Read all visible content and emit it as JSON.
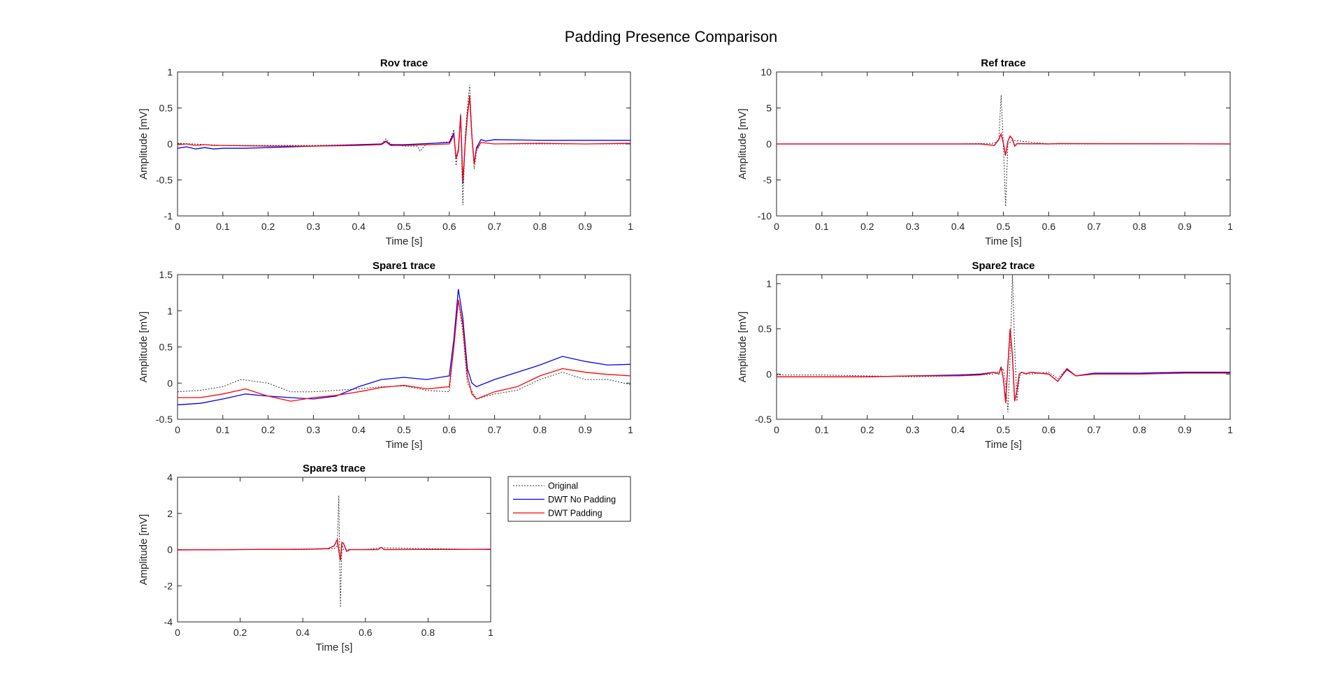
{
  "figure": {
    "title": "Padding Presence Comparison"
  },
  "legend": {
    "items": [
      {
        "label": "Original",
        "color": "#333333",
        "style": "dotted"
      },
      {
        "label": "DWT No Padding",
        "color": "#0000ff",
        "style": "solid"
      },
      {
        "label": "DWT Padding",
        "color": "#ff0000",
        "style": "solid"
      }
    ]
  },
  "chart_data": [
    {
      "id": "rov",
      "type": "line",
      "title": "Rov trace",
      "xlabel": "Time [s]",
      "ylabel": "Amplitude [mV]",
      "xlim": [
        0,
        1
      ],
      "ylim": [
        -1,
        1
      ],
      "xticks": [
        0,
        0.1,
        0.2,
        0.3,
        0.4,
        0.5,
        0.6,
        0.7,
        0.8,
        0.9,
        1
      ],
      "yticks": [
        -1,
        -0.5,
        0,
        0.5,
        1
      ],
      "series": [
        {
          "name": "Original",
          "color": "#333333",
          "style": "dotted",
          "x": [
            0,
            0.1,
            0.2,
            0.3,
            0.4,
            0.45,
            0.46,
            0.47,
            0.5,
            0.53,
            0.535,
            0.55,
            0.6,
            0.61,
            0.615,
            0.62,
            0.625,
            0.63,
            0.635,
            0.64,
            0.645,
            0.65,
            0.655,
            0.66,
            0.67,
            0.7,
            0.8,
            0.9,
            1
          ],
          "y": [
            0.01,
            -0.02,
            -0.02,
            -0.02,
            -0.01,
            0.0,
            0.07,
            0.0,
            -0.03,
            -0.03,
            -0.1,
            0.0,
            0.03,
            0.2,
            -0.3,
            -0.05,
            0.42,
            -0.85,
            0.1,
            0.5,
            0.82,
            0.1,
            -0.35,
            -0.1,
            0.02,
            0.0,
            0.0,
            0.0,
            0.0
          ]
        },
        {
          "name": "DWT No Padding",
          "color": "#0000ff",
          "style": "solid",
          "x": [
            0,
            0.02,
            0.04,
            0.06,
            0.08,
            0.1,
            0.15,
            0.2,
            0.3,
            0.4,
            0.45,
            0.46,
            0.47,
            0.5,
            0.6,
            0.61,
            0.615,
            0.62,
            0.625,
            0.63,
            0.635,
            0.64,
            0.645,
            0.65,
            0.655,
            0.66,
            0.67,
            0.68,
            0.7,
            0.8,
            0.9,
            1
          ],
          "y": [
            -0.06,
            -0.04,
            -0.07,
            -0.05,
            -0.07,
            -0.06,
            -0.06,
            -0.05,
            -0.03,
            -0.01,
            0.0,
            0.04,
            -0.01,
            -0.01,
            0.02,
            0.15,
            -0.2,
            -0.1,
            0.4,
            -0.55,
            0.0,
            0.4,
            0.65,
            0.1,
            -0.27,
            -0.05,
            0.06,
            0.04,
            0.06,
            0.05,
            0.05,
            0.05
          ]
        },
        {
          "name": "DWT Padding",
          "color": "#ff0000",
          "style": "solid",
          "x": [
            0,
            0.02,
            0.04,
            0.06,
            0.08,
            0.1,
            0.2,
            0.3,
            0.4,
            0.45,
            0.46,
            0.47,
            0.5,
            0.6,
            0.61,
            0.615,
            0.62,
            0.625,
            0.63,
            0.635,
            0.64,
            0.645,
            0.65,
            0.655,
            0.66,
            0.67,
            0.7,
            0.8,
            0.9,
            1
          ],
          "y": [
            -0.01,
            0.0,
            -0.02,
            -0.01,
            -0.02,
            -0.02,
            -0.03,
            -0.03,
            -0.02,
            -0.01,
            0.03,
            -0.02,
            -0.02,
            0.0,
            0.12,
            -0.2,
            -0.08,
            0.38,
            -0.52,
            0.0,
            0.38,
            0.68,
            0.1,
            -0.28,
            -0.07,
            0.02,
            0.0,
            0.01,
            0.0,
            0.01
          ]
        }
      ]
    },
    {
      "id": "ref",
      "type": "line",
      "title": "Ref trace",
      "xlabel": "Time [s]",
      "ylabel": "Amplitude [mV]",
      "xlim": [
        0,
        1
      ],
      "ylim": [
        -10,
        10
      ],
      "xticks": [
        0,
        0.1,
        0.2,
        0.3,
        0.4,
        0.5,
        0.6,
        0.7,
        0.8,
        0.9,
        1
      ],
      "yticks": [
        -10,
        -5,
        0,
        5,
        10
      ],
      "series": [
        {
          "name": "Original",
          "color": "#333333",
          "style": "dotted",
          "x": [
            0,
            0.4,
            0.48,
            0.49,
            0.495,
            0.5,
            0.505,
            0.51,
            0.52,
            0.6,
            1
          ],
          "y": [
            0,
            0,
            0.1,
            0.6,
            6.8,
            0.0,
            -8.7,
            0.0,
            0.5,
            0,
            0
          ]
        },
        {
          "name": "DWT No Padding",
          "color": "#0000ff",
          "style": "solid",
          "x": [
            0,
            0.45,
            0.48,
            0.49,
            0.495,
            0.5,
            0.505,
            0.51,
            0.515,
            0.52,
            0.525,
            0.53,
            0.6,
            0.62,
            1
          ],
          "y": [
            0,
            0,
            -0.2,
            0.6,
            1.4,
            0.1,
            -1.6,
            0.4,
            1.1,
            0.7,
            -0.3,
            0.05,
            0,
            0.05,
            0
          ]
        },
        {
          "name": "DWT Padding",
          "color": "#ff0000",
          "style": "solid",
          "x": [
            0,
            0.45,
            0.48,
            0.49,
            0.495,
            0.5,
            0.505,
            0.51,
            0.515,
            0.52,
            0.525,
            0.53,
            0.6,
            0.62,
            1
          ],
          "y": [
            0,
            0,
            -0.2,
            0.6,
            1.4,
            0.1,
            -1.6,
            0.4,
            1.1,
            0.7,
            -0.3,
            0.05,
            0,
            0.05,
            0
          ]
        }
      ]
    },
    {
      "id": "spare1",
      "type": "line",
      "title": "Spare1 trace",
      "xlabel": "Time [s]",
      "ylabel": "Amplitude [mV]",
      "xlim": [
        0,
        1
      ],
      "ylim": [
        -0.5,
        1.5
      ],
      "xticks": [
        0,
        0.1,
        0.2,
        0.3,
        0.4,
        0.5,
        0.6,
        0.7,
        0.8,
        0.9,
        1
      ],
      "yticks": [
        -0.5,
        0,
        0.5,
        1,
        1.5
      ],
      "series": [
        {
          "name": "Original",
          "color": "#333333",
          "style": "dotted",
          "x": [
            0,
            0.05,
            0.1,
            0.14,
            0.2,
            0.25,
            0.3,
            0.4,
            0.45,
            0.5,
            0.55,
            0.6,
            0.61,
            0.62,
            0.63,
            0.64,
            0.66,
            0.7,
            0.75,
            0.8,
            0.85,
            0.9,
            0.95,
            1
          ],
          "y": [
            -0.12,
            -0.1,
            -0.05,
            0.05,
            0.0,
            -0.12,
            -0.12,
            -0.08,
            -0.05,
            -0.04,
            -0.1,
            -0.12,
            0.5,
            1.15,
            0.7,
            0.0,
            -0.22,
            -0.15,
            -0.1,
            0.05,
            0.15,
            0.05,
            0.05,
            -0.02
          ]
        },
        {
          "name": "DWT No Padding",
          "color": "#0000ff",
          "style": "solid",
          "x": [
            0,
            0.05,
            0.1,
            0.15,
            0.2,
            0.25,
            0.3,
            0.35,
            0.4,
            0.45,
            0.5,
            0.55,
            0.6,
            0.61,
            0.62,
            0.63,
            0.64,
            0.65,
            0.66,
            0.7,
            0.75,
            0.8,
            0.85,
            0.9,
            0.95,
            1
          ],
          "y": [
            -0.3,
            -0.28,
            -0.22,
            -0.15,
            -0.18,
            -0.2,
            -0.22,
            -0.18,
            -0.05,
            0.05,
            0.08,
            0.05,
            0.1,
            0.6,
            1.3,
            0.9,
            0.2,
            0.0,
            -0.05,
            0.05,
            0.15,
            0.25,
            0.37,
            0.3,
            0.25,
            0.26
          ]
        },
        {
          "name": "DWT Padding",
          "color": "#ff0000",
          "style": "solid",
          "x": [
            0,
            0.05,
            0.1,
            0.15,
            0.2,
            0.25,
            0.3,
            0.35,
            0.4,
            0.45,
            0.5,
            0.55,
            0.6,
            0.61,
            0.62,
            0.63,
            0.64,
            0.65,
            0.66,
            0.7,
            0.75,
            0.8,
            0.85,
            0.9,
            0.95,
            1
          ],
          "y": [
            -0.2,
            -0.2,
            -0.15,
            -0.08,
            -0.18,
            -0.25,
            -0.2,
            -0.17,
            -0.12,
            -0.06,
            -0.03,
            -0.08,
            -0.05,
            0.5,
            1.15,
            0.8,
            0.1,
            -0.15,
            -0.22,
            -0.12,
            -0.05,
            0.1,
            0.2,
            0.15,
            0.12,
            0.1
          ]
        }
      ]
    },
    {
      "id": "spare2",
      "type": "line",
      "title": "Spare2 trace",
      "xlabel": "Time [s]",
      "ylabel": "Amplitude [mV]",
      "xlim": [
        0,
        1
      ],
      "ylim": [
        -0.5,
        1.1
      ],
      "xticks": [
        0,
        0.1,
        0.2,
        0.3,
        0.4,
        0.5,
        0.6,
        0.7,
        0.8,
        0.9,
        1
      ],
      "yticks": [
        -0.5,
        0,
        0.5,
        1
      ],
      "series": [
        {
          "name": "Original",
          "color": "#333333",
          "style": "dotted",
          "x": [
            0,
            0.1,
            0.2,
            0.3,
            0.4,
            0.48,
            0.5,
            0.505,
            0.51,
            0.515,
            0.52,
            0.525,
            0.53,
            0.535,
            0.54,
            0.56,
            0.6,
            0.62,
            0.64,
            0.66,
            0.7,
            0.8,
            1
          ],
          "y": [
            -0.01,
            -0.01,
            -0.02,
            -0.03,
            -0.02,
            0.0,
            0.06,
            -0.1,
            -0.42,
            0.2,
            1.1,
            0.3,
            -0.3,
            -0.05,
            0.02,
            0.0,
            0.02,
            -0.05,
            0.06,
            -0.02,
            0.0,
            0.01,
            0.02
          ]
        },
        {
          "name": "DWT No Padding",
          "color": "#0000ff",
          "style": "solid",
          "x": [
            0,
            0.1,
            0.2,
            0.3,
            0.4,
            0.45,
            0.48,
            0.49,
            0.495,
            0.5,
            0.505,
            0.51,
            0.515,
            0.52,
            0.525,
            0.53,
            0.535,
            0.54,
            0.55,
            0.56,
            0.6,
            0.62,
            0.64,
            0.66,
            0.7,
            0.8,
            0.9,
            1
          ],
          "y": [
            -0.03,
            -0.03,
            -0.03,
            -0.02,
            -0.01,
            0.0,
            0.02,
            0.0,
            0.08,
            -0.05,
            -0.3,
            0.1,
            0.5,
            0.2,
            -0.3,
            -0.18,
            0.0,
            0.02,
            0.0,
            0.02,
            0.0,
            -0.08,
            0.05,
            -0.02,
            0.01,
            0.01,
            0.02,
            0.02
          ]
        },
        {
          "name": "DWT Padding",
          "color": "#ff0000",
          "style": "solid",
          "x": [
            0,
            0.1,
            0.2,
            0.3,
            0.4,
            0.45,
            0.48,
            0.49,
            0.495,
            0.5,
            0.505,
            0.51,
            0.515,
            0.52,
            0.525,
            0.53,
            0.535,
            0.54,
            0.55,
            0.56,
            0.6,
            0.62,
            0.64,
            0.66,
            0.7,
            0.8,
            0.9,
            1
          ],
          "y": [
            -0.03,
            -0.03,
            -0.03,
            -0.02,
            -0.02,
            -0.01,
            0.02,
            0.0,
            0.07,
            -0.05,
            -0.32,
            0.1,
            0.5,
            0.2,
            -0.3,
            -0.18,
            0.0,
            0.02,
            0.0,
            0.02,
            0.0,
            -0.08,
            0.06,
            -0.02,
            0.0,
            0.0,
            0.01,
            0.01
          ]
        }
      ]
    },
    {
      "id": "spare3",
      "type": "line",
      "title": "Spare3 trace",
      "xlabel": "Time [s]",
      "ylabel": "Amplitude [mV]",
      "xlim": [
        0,
        1
      ],
      "ylim": [
        -4,
        4
      ],
      "xticks": [
        0,
        0.2,
        0.4,
        0.6,
        0.8,
        1
      ],
      "yticks": [
        -4,
        -2,
        0,
        2,
        4
      ],
      "series": [
        {
          "name": "Original",
          "color": "#333333",
          "style": "dotted",
          "x": [
            0,
            0.4,
            0.5,
            0.51,
            0.515,
            0.52,
            0.525,
            0.53,
            0.6,
            0.65,
            1
          ],
          "y": [
            0,
            0,
            0.05,
            0.2,
            3.0,
            -3.2,
            0.3,
            0.0,
            0.0,
            0.1,
            0
          ]
        },
        {
          "name": "DWT No Padding",
          "color": "#0000ff",
          "style": "solid",
          "x": [
            0,
            0.4,
            0.48,
            0.5,
            0.51,
            0.515,
            0.52,
            0.525,
            0.53,
            0.54,
            0.55,
            0.6,
            0.64,
            0.65,
            0.66,
            1
          ],
          "y": [
            -0.02,
            0.02,
            0.05,
            0.2,
            0.55,
            -0.05,
            -0.6,
            0.4,
            0.35,
            -0.1,
            0.0,
            0.0,
            0.0,
            0.12,
            0.0,
            0.02
          ]
        },
        {
          "name": "DWT Padding",
          "color": "#ff0000",
          "style": "solid",
          "x": [
            0,
            0.4,
            0.48,
            0.5,
            0.51,
            0.515,
            0.52,
            0.525,
            0.53,
            0.54,
            0.55,
            0.6,
            0.64,
            0.65,
            0.66,
            1
          ],
          "y": [
            -0.02,
            0.02,
            0.05,
            0.2,
            0.55,
            -0.05,
            -0.6,
            0.4,
            0.35,
            -0.1,
            0.0,
            0.0,
            0.0,
            0.12,
            0.0,
            0.02
          ]
        }
      ]
    }
  ]
}
